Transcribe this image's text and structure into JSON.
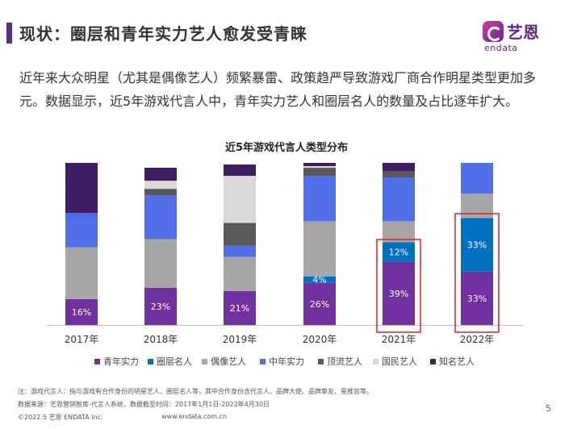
{
  "page": {
    "title": "现状：圈层和青年实力艺人愈发受青睐",
    "intro": "近年来大众明星（尤其是偶像艺人）频繁暴雷、政策趋严导致游戏厂商合作明星类型更加多元。数据显示，近5年游戏代言人中，青年实力艺人和圈层名人的数量及占比逐年扩大。",
    "logo_cn": "艺恩",
    "logo_en": "endata",
    "notes": [
      "注：游戏代言人：指与游戏有合作身份的明星艺人、圈层名人等，其中合作身份含代言人、品牌大使、品牌挚友、星推官等。",
      "数据来源：艺恩营销智库-代言人系统，数据截至时间：2017年1月1日-2022年4月30日"
    ],
    "copyright": "©2022.5 艺恩 ENDATA Inc.",
    "website": "www.endata.com.cn",
    "page_number": "5"
  },
  "chart_data": {
    "type": "bar",
    "stacked": true,
    "normalized_to_percent": true,
    "title": "近5年游戏代言人类型分布",
    "categories": [
      "2017年",
      "2018年",
      "2019年",
      "2020年",
      "2021年",
      "2022年"
    ],
    "series": [
      {
        "name": "青年实力",
        "color": "#7030a0",
        "values": [
          16,
          23,
          21,
          26,
          39,
          33
        ]
      },
      {
        "name": "圈层名人",
        "color": "#0070c0",
        "values": [
          0,
          0,
          0,
          4,
          12,
          33
        ]
      },
      {
        "name": "偶像艺人",
        "color": "#a6a6a6",
        "values": [
          32,
          30,
          21,
          34,
          13,
          15
        ]
      },
      {
        "name": "中年实力",
        "color": "#4f6ee8",
        "values": [
          21,
          27,
          7,
          28,
          27,
          19
        ]
      },
      {
        "name": "顶流艺人",
        "color": "#595959",
        "values": [
          0,
          4,
          14,
          5,
          4,
          0
        ]
      },
      {
        "name": "国民艺人",
        "color": "#d9d9d9",
        "values": [
          0,
          5,
          29,
          1,
          0,
          0
        ]
      },
      {
        "name": "知名艺人",
        "color": "#3e1d63",
        "values": [
          31,
          8,
          7,
          2,
          5,
          0
        ]
      }
    ],
    "data_labels": {
      "青年实力": [
        "16%",
        "23%",
        "21%",
        "26%",
        "39%",
        "33%"
      ],
      "圈层名人": [
        "",
        "",
        "",
        "4%",
        "12%",
        "33%"
      ]
    },
    "highlighted_categories": [
      "2021年",
      "2022年"
    ],
    "highlight_color": "#e02020",
    "ylim": [
      0,
      100
    ],
    "grid": false,
    "legend_position": "bottom"
  }
}
